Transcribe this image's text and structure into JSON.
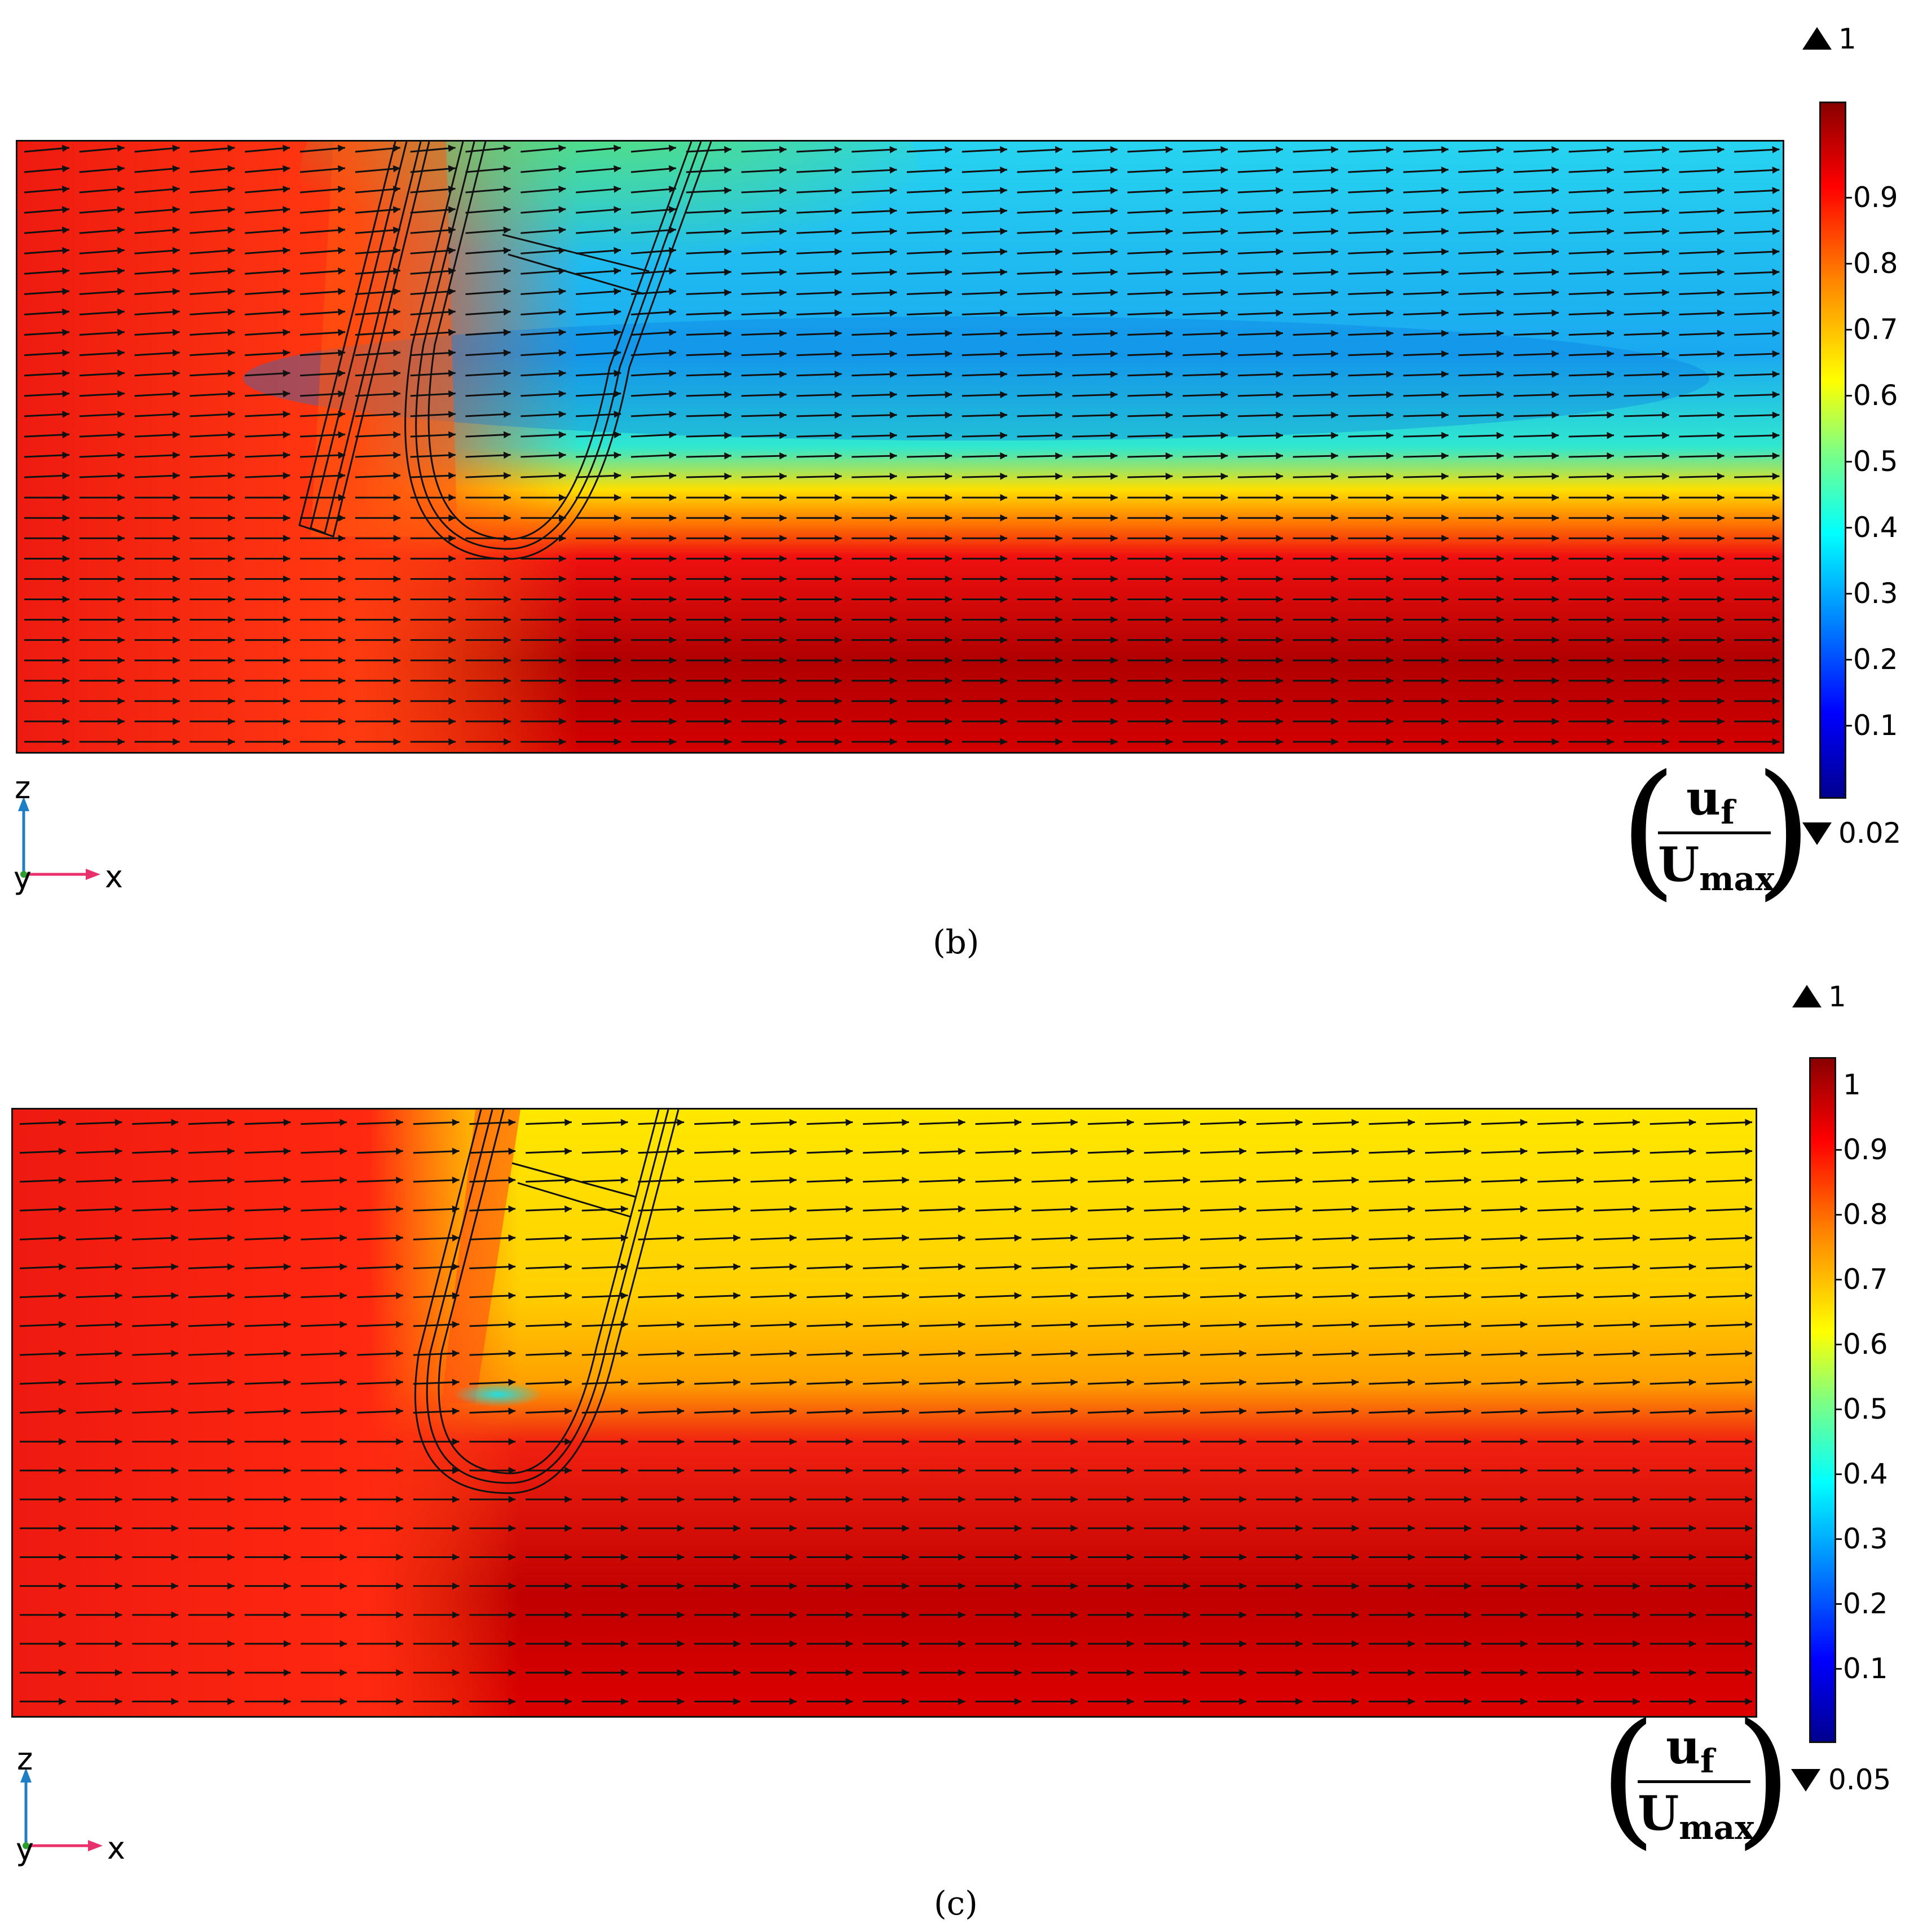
{
  "panels": [
    {
      "id": "b",
      "caption": "(b)",
      "caption_letter": "b",
      "colorbar": {
        "max_label": "1",
        "min_label": "0.02",
        "top_tick_label": "",
        "tick_labels": [
          "0.9",
          "0.8",
          "0.7",
          "0.6",
          "0.5",
          "0.4",
          "0.3",
          "0.2",
          "0.1"
        ]
      },
      "axes": {
        "z": "z",
        "x": "x",
        "y": "y"
      },
      "unit": {
        "numerator": "u",
        "numerator_sub": "f",
        "denominator": "U",
        "denominator_sub": "max"
      }
    },
    {
      "id": "c",
      "caption": "(c)",
      "caption_letter": "c",
      "colorbar": {
        "max_label": "1",
        "min_label": "0.05",
        "top_tick_label": "1",
        "tick_labels": [
          "0.9",
          "0.8",
          "0.7",
          "0.6",
          "0.5",
          "0.4",
          "0.3",
          "0.2",
          "0.1"
        ]
      },
      "axes": {
        "z": "z",
        "x": "x",
        "y": "y"
      },
      "unit": {
        "numerator": "u",
        "numerator_sub": "f",
        "denominator": "U",
        "denominator_sub": "max"
      }
    }
  ],
  "colormap": [
    "#00008f",
    "#0000ff",
    "#0080ff",
    "#00ffff",
    "#80ff80",
    "#ffff00",
    "#ff8000",
    "#ff0000",
    "#800000"
  ]
}
